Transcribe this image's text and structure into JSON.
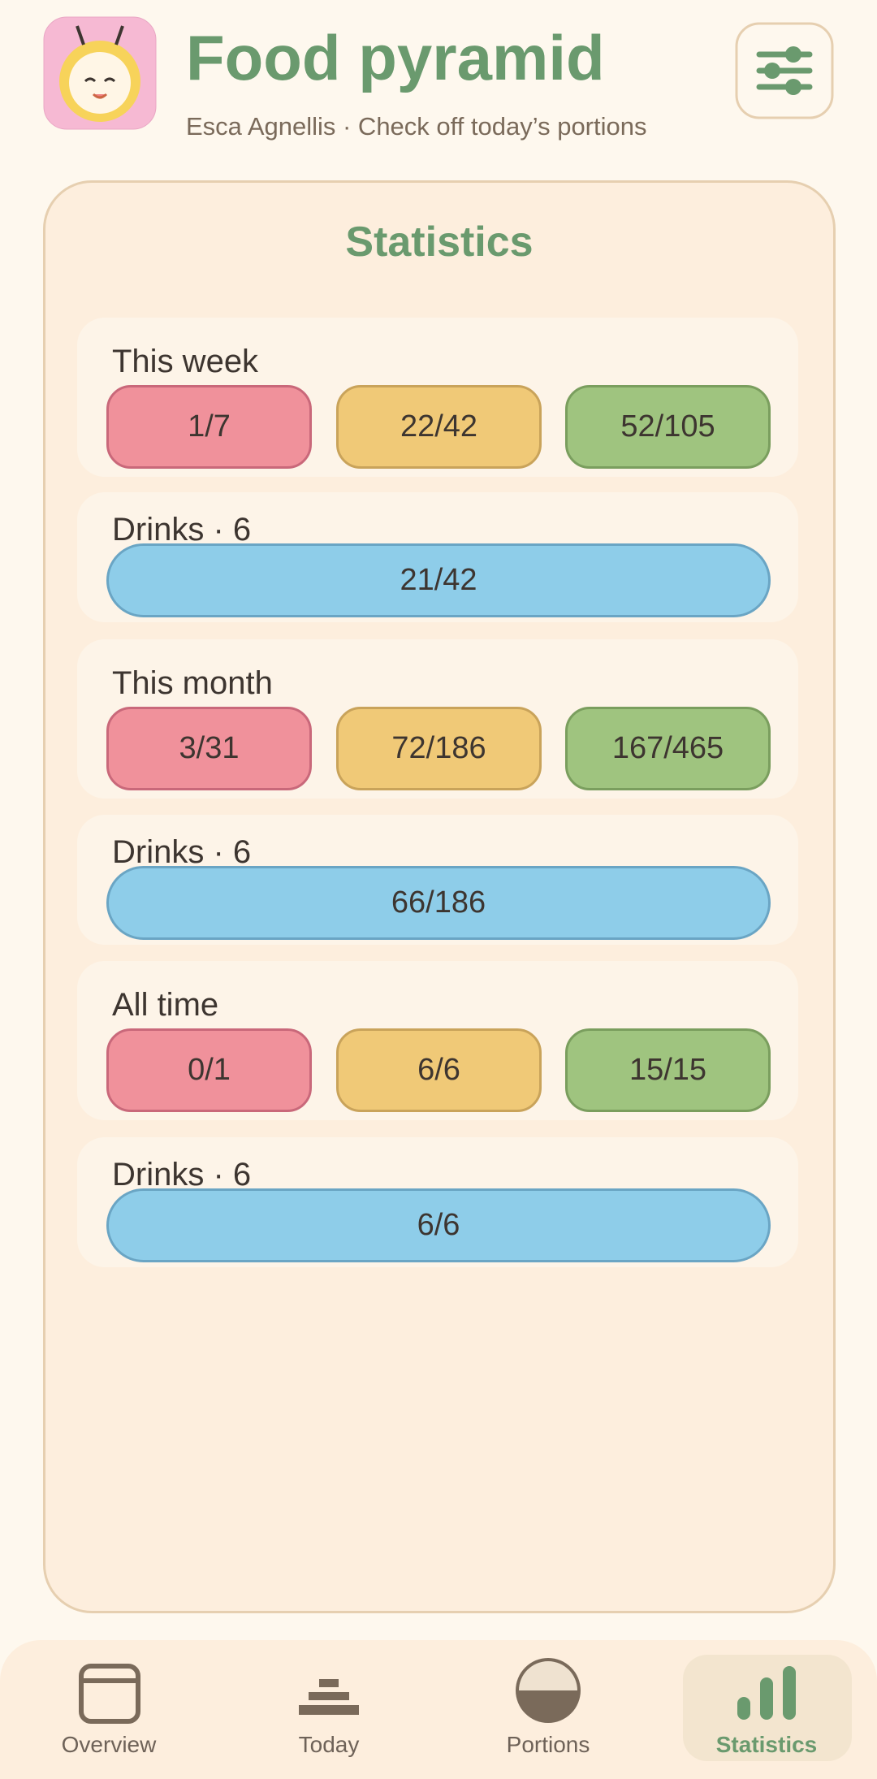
{
  "header": {
    "title": "Food pyramid",
    "subtitle": "Esca Agnellis · Check off today’s portions"
  },
  "statistics": {
    "title": "Statistics",
    "groups": [
      {
        "label": "This week",
        "values": [
          "1/7",
          "22/42",
          "52/105"
        ],
        "drinks_label": "Drinks · 6",
        "drinks": "21/42"
      },
      {
        "label": "This month",
        "values": [
          "3/31",
          "72/186",
          "167/465"
        ],
        "drinks_label": "Drinks · 6",
        "drinks": "66/186"
      },
      {
        "label": "All time",
        "values": [
          "0/1",
          "6/6",
          "15/15"
        ],
        "drinks_label": "Drinks · 6",
        "drinks": "6/6"
      }
    ]
  },
  "nav": [
    {
      "label": "Overview"
    },
    {
      "label": "Today"
    },
    {
      "label": "Portions"
    },
    {
      "label": "Statistics"
    }
  ]
}
